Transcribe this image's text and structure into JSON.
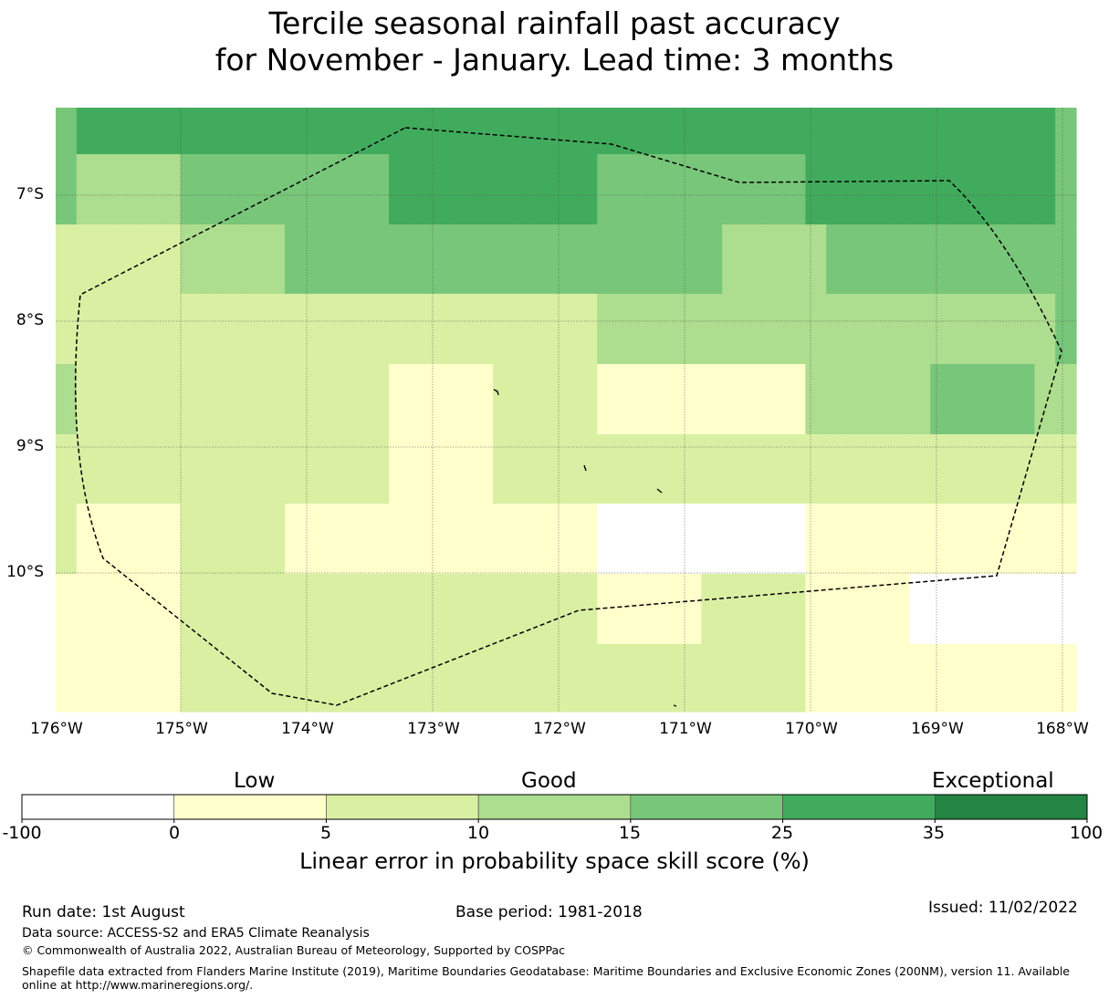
{
  "title": {
    "line1": "Tercile seasonal rainfall past accuracy",
    "line2": "for November - January. Lead time: 3 months"
  },
  "map": {
    "lon_ticks": [
      "176°W",
      "175°W",
      "174°W",
      "173°W",
      "172°W",
      "171°W",
      "170°W",
      "169°W",
      "168°W"
    ],
    "lat_ticks": [
      "7°S",
      "8°S",
      "9°S",
      "10°S"
    ],
    "class_colors": [
      "#ffffff",
      "#ffffcc",
      "#d9f0a3",
      "#addd8e",
      "#78c679",
      "#41ab5d",
      "#238443"
    ],
    "grid_classes": [
      [
        4,
        5,
        5,
        5,
        5,
        5,
        5,
        5,
        5,
        5,
        5,
        5,
        5,
        5,
        5,
        5,
        5,
        5,
        5,
        5,
        5,
        5,
        5,
        5,
        5,
        5,
        5,
        5,
        5,
        5,
        5,
        5,
        5,
        5,
        5,
        5,
        5,
        5,
        5,
        5,
        5,
        5,
        5,
        5,
        5,
        5,
        5,
        5,
        4
      ],
      [
        4,
        3,
        3,
        3,
        3,
        3,
        4,
        4,
        4,
        4,
        4,
        4,
        4,
        4,
        4,
        4,
        5,
        5,
        5,
        5,
        5,
        5,
        5,
        5,
        5,
        5,
        4,
        4,
        4,
        4,
        4,
        4,
        4,
        4,
        4,
        4,
        5,
        5,
        5,
        5,
        5,
        5,
        5,
        5,
        5,
        5,
        5,
        5,
        4
      ],
      [
        2,
        2,
        2,
        2,
        2,
        2,
        3,
        3,
        3,
        3,
        3,
        4,
        4,
        4,
        4,
        4,
        4,
        4,
        4,
        4,
        4,
        4,
        4,
        4,
        4,
        4,
        4,
        4,
        4,
        4,
        4,
        4,
        3,
        3,
        3,
        3,
        3,
        4,
        4,
        4,
        4,
        4,
        4,
        4,
        4,
        4,
        4,
        4,
        4
      ],
      [
        2,
        2,
        2,
        2,
        2,
        2,
        2,
        2,
        2,
        2,
        2,
        2,
        2,
        2,
        2,
        2,
        2,
        2,
        2,
        2,
        2,
        2,
        2,
        2,
        2,
        2,
        3,
        3,
        3,
        3,
        3,
        3,
        3,
        3,
        3,
        3,
        3,
        3,
        3,
        3,
        3,
        3,
        3,
        3,
        3,
        3,
        3,
        3,
        4
      ],
      [
        3,
        2,
        2,
        2,
        2,
        2,
        2,
        2,
        2,
        2,
        2,
        2,
        2,
        2,
        2,
        2,
        1,
        1,
        1,
        1,
        1,
        2,
        2,
        2,
        2,
        2,
        1,
        1,
        1,
        1,
        1,
        1,
        1,
        1,
        1,
        1,
        3,
        3,
        3,
        3,
        3,
        3,
        4,
        4,
        4,
        4,
        4,
        3,
        3
      ],
      [
        2,
        2,
        2,
        2,
        2,
        2,
        2,
        2,
        2,
        2,
        2,
        2,
        2,
        2,
        2,
        2,
        1,
        1,
        1,
        1,
        1,
        2,
        2,
        2,
        2,
        2,
        2,
        2,
        2,
        2,
        2,
        2,
        2,
        2,
        2,
        2,
        2,
        2,
        2,
        2,
        2,
        2,
        2,
        2,
        2,
        2,
        2,
        2,
        2
      ],
      [
        2,
        1,
        1,
        1,
        1,
        1,
        2,
        2,
        2,
        2,
        2,
        1,
        1,
        1,
        1,
        1,
        1,
        1,
        1,
        1,
        1,
        1,
        1,
        1,
        1,
        1,
        0,
        0,
        0,
        0,
        0,
        0,
        0,
        0,
        0,
        0,
        1,
        1,
        1,
        1,
        1,
        1,
        1,
        1,
        1,
        1,
        1,
        1,
        1
      ],
      [
        1,
        1,
        1,
        1,
        1,
        1,
        2,
        2,
        2,
        2,
        2,
        2,
        2,
        2,
        2,
        2,
        2,
        2,
        2,
        2,
        2,
        2,
        2,
        2,
        2,
        2,
        1,
        1,
        1,
        1,
        1,
        2,
        2,
        2,
        2,
        2,
        1,
        1,
        1,
        1,
        1,
        0,
        0,
        0,
        0,
        0,
        0,
        0,
        0
      ],
      [
        1,
        1,
        1,
        1,
        1,
        1,
        2,
        2,
        2,
        2,
        2,
        2,
        2,
        2,
        2,
        2,
        2,
        2,
        2,
        2,
        2,
        2,
        2,
        2,
        2,
        2,
        2,
        2,
        2,
        2,
        2,
        2,
        2,
        2,
        2,
        2,
        1,
        1,
        1,
        1,
        1,
        1,
        1,
        1,
        1,
        1,
        1,
        1,
        1
      ]
    ]
  },
  "colorbar": {
    "category_low": "Low",
    "category_good": "Good",
    "category_exceptional": "Exceptional",
    "ticks": [
      "-100",
      "0",
      "5",
      "10",
      "15",
      "25",
      "35",
      "100"
    ],
    "label": "Linear error in probability space skill score (%)"
  },
  "footer": {
    "run_date": "Run date: 1st August",
    "base_period": "Base period: 1981-2018",
    "issued": "Issued: 11/02/2022",
    "data_source": "Data source: ACCESS-S2 and ERA5 Climate Reanalysis",
    "copyright": "© Commonwealth of Australia 2022, Australian Bureau of Meteorology, Supported by COSPPac",
    "shapefile": "Shapefile data extracted from Flanders Marine Institute (2019), Maritime Boundaries Geodatabase: Maritime Boundaries and Exclusive Economic Zones (200NM), version 11. Available online at http://www.marineregions.org/."
  }
}
